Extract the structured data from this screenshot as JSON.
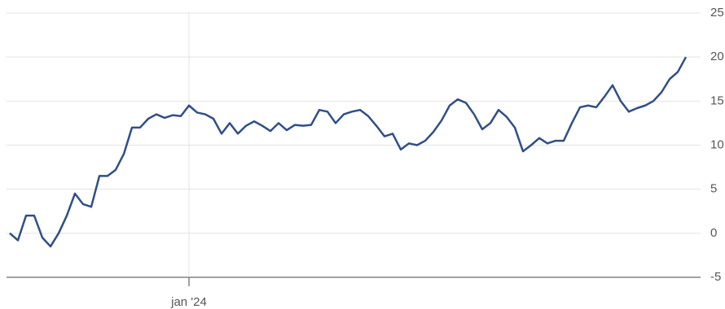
{
  "chart_data": {
    "type": "line",
    "categories": [
      null,
      null,
      null,
      null,
      null,
      null,
      null,
      null,
      null,
      null,
      null,
      null,
      null,
      null,
      null,
      null,
      null,
      null,
      null,
      null,
      null,
      null,
      "jan '24",
      null,
      null,
      null,
      null,
      null,
      null,
      null,
      null,
      null,
      null,
      null,
      null,
      null,
      null,
      null,
      null,
      null,
      null,
      null,
      null,
      null,
      null,
      null,
      null,
      null,
      null,
      null,
      null,
      null,
      null,
      null,
      null,
      null,
      null,
      null,
      null,
      null,
      null,
      null,
      null,
      null,
      null,
      null,
      null,
      null,
      null,
      null,
      null,
      null,
      null,
      null,
      null,
      null,
      null,
      null,
      null,
      null,
      null,
      null,
      null,
      null
    ],
    "series": [
      {
        "color": "#2f4f88",
        "values": [
          0,
          -0.8,
          2,
          2,
          -0.5,
          -1.5,
          0,
          2,
          4.5,
          3.3,
          3,
          6.5,
          6.5,
          7.2,
          9,
          12,
          12,
          13,
          13.5,
          13.1,
          13.4,
          13.3,
          14.5,
          13.7,
          13.5,
          13,
          11.3,
          12.5,
          11.3,
          12.2,
          12.7,
          12.2,
          11.6,
          12.5,
          11.7,
          12.3,
          12.2,
          12.3,
          14,
          13.8,
          12.5,
          13.5,
          13.8,
          14,
          13.3,
          12.2,
          11,
          11.3,
          9.5,
          10.2,
          10,
          10.5,
          11.5,
          12.8,
          14.5,
          15.2,
          14.8,
          13.5,
          11.8,
          12.5,
          14,
          13.2,
          12,
          9.3,
          10,
          10.8,
          10.2,
          10.5,
          10.5,
          12.5,
          14.3,
          14.5,
          14.3,
          15.5,
          16.8,
          15,
          13.8,
          14.2,
          14.5,
          15,
          16,
          17.5,
          18.3,
          20
        ]
      }
    ],
    "ylim": [
      -5,
      25
    ],
    "yticks": [
      -5,
      0,
      5,
      10,
      15,
      20,
      25
    ],
    "grid": true
  }
}
